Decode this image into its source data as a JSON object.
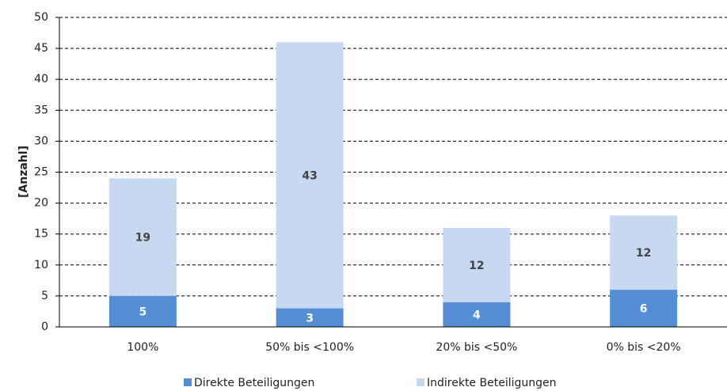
{
  "chart_data": {
    "type": "stacked_bar",
    "y_label": "[Anzahl]",
    "categories": [
      "100%",
      "50% bis <100%",
      "20% bis <50%",
      "0% bis <20%"
    ],
    "series": [
      {
        "name": "Direkte Beteiligungen",
        "color": "#558ed5",
        "values": [
          5,
          3,
          4,
          6
        ]
      },
      {
        "name": "Indirekte Beteiligungen",
        "color": "#c6d9f1",
        "values": [
          19,
          43,
          12,
          12
        ]
      }
    ],
    "ylim": [
      0,
      50
    ],
    "yticks": [
      0,
      5,
      10,
      15,
      20,
      25,
      30,
      35,
      40,
      45,
      50
    ],
    "grid": true
  }
}
